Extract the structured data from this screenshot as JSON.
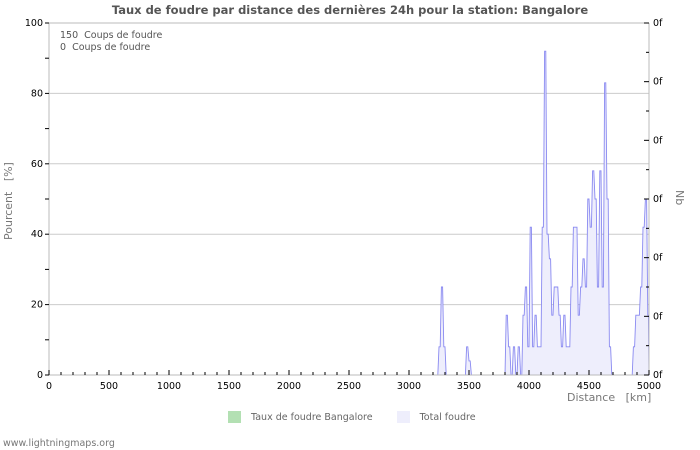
{
  "title": "Taux de foudre par distance des dernières 24h pour la station: Bangalore",
  "y_axis_label": "Pourcent   [%]",
  "y2_axis_label": "Nb",
  "x_axis_label": "Distance   [km]",
  "notes": [
    "150  Coups de foudre",
    "0  Coups de foudre"
  ],
  "legend": [
    {
      "label": "Taux de foudre Bangalore",
      "color": "#b3e0b3"
    },
    {
      "label": "Total foudre",
      "color": "#eeeefc"
    }
  ],
  "footer": "www.lightningmaps.org",
  "colors": {
    "line": "#7777ee",
    "fill": "#eeeefc",
    "grid": "#cccccc",
    "axis": "#bbbbbb"
  },
  "chart_data": {
    "type": "area",
    "title": "Taux de foudre par distance des dernières 24h pour la station: Bangalore",
    "xlabel": "Distance   [km]",
    "ylabel": "Pourcent   [%]",
    "y2label": "Nb",
    "xlim": [
      0,
      5000
    ],
    "ylim": [
      0,
      100
    ],
    "x_ticks": [
      0,
      500,
      1000,
      1500,
      2000,
      2500,
      3000,
      3500,
      4000,
      4500,
      5000
    ],
    "y_ticks": [
      0,
      20,
      40,
      60,
      80,
      100
    ],
    "y2_ticks": [
      "0f",
      "0f",
      "0f",
      "0f",
      "0f",
      "0f",
      "0f"
    ],
    "grid": true,
    "legend_position": "bottom",
    "series": [
      {
        "name": "Total foudre",
        "x": [
          3230,
          3250,
          3270,
          3290,
          3310,
          3460,
          3480,
          3500,
          3520,
          3790,
          3810,
          3830,
          3850,
          3870,
          3890,
          3910,
          3930,
          3950,
          3970,
          3990,
          4010,
          4030,
          4050,
          4070,
          4090,
          4110,
          4130,
          4150,
          4170,
          4190,
          4210,
          4230,
          4250,
          4270,
          4290,
          4310,
          4330,
          4350,
          4370,
          4390,
          4410,
          4430,
          4450,
          4470,
          4490,
          4510,
          4530,
          4550,
          4570,
          4590,
          4610,
          4630,
          4650,
          4670,
          4690,
          4710,
          4850,
          4870,
          4890,
          4910,
          4930,
          4950,
          4970,
          4990,
          5000
        ],
        "values": [
          0,
          8,
          25,
          8,
          0,
          0,
          8,
          4,
          0,
          0,
          17,
          8,
          0,
          8,
          0,
          8,
          0,
          17,
          25,
          8,
          42,
          8,
          17,
          8,
          8,
          42,
          92,
          40,
          33,
          17,
          25,
          25,
          17,
          8,
          17,
          8,
          8,
          25,
          42,
          42,
          17,
          25,
          33,
          25,
          50,
          42,
          58,
          50,
          25,
          58,
          25,
          83,
          50,
          8,
          0,
          0,
          0,
          8,
          17,
          17,
          25,
          42,
          50,
          17,
          0
        ]
      },
      {
        "name": "Taux de foudre Bangalore",
        "x": [
          0,
          5000
        ],
        "values": [
          0,
          0
        ]
      }
    ]
  }
}
